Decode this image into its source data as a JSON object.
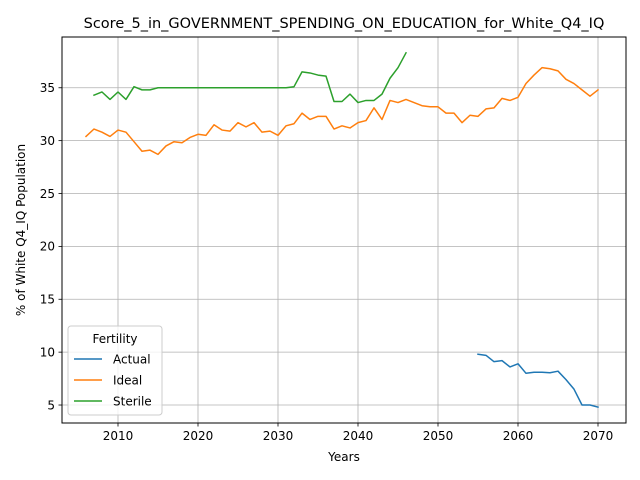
{
  "chart_data": {
    "type": "line",
    "title": "Score_5_in_GOVERNMENT_SPENDING_ON_EDUCATION_for_White_Q4_IQ",
    "xlabel": "Years",
    "ylabel": "% of White Q4_IQ Population",
    "xlim": [
      2003,
      2073.5
    ],
    "ylim": [
      3.3,
      39.8
    ],
    "xticks": [
      2010,
      2020,
      2030,
      2040,
      2050,
      2060,
      2070
    ],
    "yticks": [
      5,
      10,
      15,
      20,
      25,
      30,
      35
    ],
    "grid": true,
    "legend": {
      "title": "Fertility",
      "position": "lower left"
    },
    "series": [
      {
        "name": "Actual",
        "color": "#1f77b4",
        "x": [
          2055,
          2056,
          2057,
          2058,
          2059,
          2060,
          2061,
          2062,
          2063,
          2064,
          2065,
          2066,
          2067,
          2068,
          2069,
          2070
        ],
        "y": [
          9.8,
          9.7,
          9.1,
          9.2,
          8.6,
          8.9,
          8.0,
          8.1,
          8.1,
          8.05,
          8.2,
          7.4,
          6.5,
          5.0,
          5.0,
          4.8
        ]
      },
      {
        "name": "Ideal",
        "color": "#ff7f0e",
        "x": [
          2006,
          2007,
          2008,
          2009,
          2010,
          2011,
          2012,
          2013,
          2014,
          2015,
          2016,
          2017,
          2018,
          2019,
          2020,
          2021,
          2022,
          2023,
          2024,
          2025,
          2026,
          2027,
          2028,
          2029,
          2030,
          2031,
          2032,
          2033,
          2034,
          2035,
          2036,
          2037,
          2038,
          2039,
          2040,
          2041,
          2042,
          2043,
          2044,
          2045,
          2046,
          2047,
          2048,
          2049,
          2050,
          2051,
          2052,
          2053,
          2054,
          2055,
          2056,
          2057,
          2058,
          2059,
          2060,
          2061,
          2062,
          2063,
          2064,
          2065,
          2066,
          2067,
          2068,
          2069,
          2070
        ],
        "y": [
          30.4,
          31.1,
          30.8,
          30.4,
          31.0,
          30.8,
          29.9,
          29.0,
          29.1,
          28.7,
          29.5,
          29.9,
          29.8,
          30.3,
          30.6,
          30.5,
          31.5,
          31.0,
          30.9,
          31.7,
          31.3,
          31.7,
          30.8,
          30.9,
          30.5,
          31.4,
          31.6,
          32.6,
          32.0,
          32.3,
          32.3,
          31.1,
          31.4,
          31.2,
          31.7,
          31.9,
          33.1,
          32.0,
          33.8,
          33.6,
          33.9,
          33.6,
          33.3,
          33.2,
          33.2,
          32.6,
          32.6,
          31.7,
          32.4,
          32.3,
          33.0,
          33.1,
          34.0,
          33.8,
          34.1,
          35.4,
          36.2,
          36.9,
          36.8,
          36.6,
          35.8,
          35.4,
          34.8,
          34.2,
          34.8
        ]
      },
      {
        "name": "Sterile",
        "color": "#2ca02c",
        "x": [
          2007,
          2008,
          2009,
          2010,
          2011,
          2012,
          2013,
          2014,
          2015,
          2016,
          2017,
          2018,
          2019,
          2020,
          2021,
          2022,
          2023,
          2024,
          2025,
          2026,
          2027,
          2028,
          2029,
          2030,
          2031,
          2032,
          2033,
          2034,
          2035,
          2036,
          2037,
          2038,
          2039,
          2040,
          2041,
          2042,
          2043,
          2044,
          2045,
          2046
        ],
        "y": [
          34.3,
          34.6,
          33.9,
          34.6,
          33.9,
          35.1,
          34.8,
          34.8,
          35.0,
          35.0,
          35.0,
          35.0,
          35.0,
          35.0,
          35.0,
          35.0,
          35.0,
          35.0,
          35.0,
          35.0,
          35.0,
          35.0,
          35.0,
          35.0,
          35.0,
          35.1,
          36.5,
          36.4,
          36.2,
          36.1,
          33.7,
          33.7,
          34.4,
          33.6,
          33.8,
          33.8,
          34.4,
          35.9,
          36.9,
          38.3
        ]
      }
    ]
  }
}
